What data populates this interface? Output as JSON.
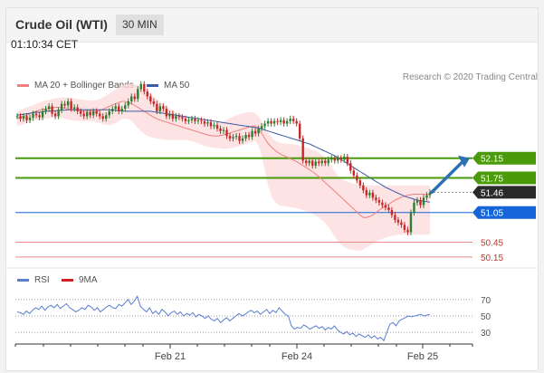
{
  "header": {
    "title": "Crude Oil (WTI)",
    "timeframe": "30 MIN"
  },
  "timestamp": "01:10:34 CET",
  "legend": {
    "ma20_bb": "MA 20 + Bollinger Bands",
    "ma50": "MA 50",
    "credit": "Research © 2020 Trading Central"
  },
  "rsi_legend": {
    "rsi": "RSI",
    "ma9": "9MA"
  },
  "colors": {
    "ma20": "#f08080",
    "ma50": "#3b5ba5",
    "band": "#fcd9d9",
    "resistance": "#4a9a0a",
    "pivot": "#1565d8",
    "support": "#e88a8a",
    "current": "#2a2a2a",
    "up_candle": "#2e7d32",
    "down_candle": "#c62828",
    "arrow": "#2f6fb4",
    "rsi": "#5a7fd0"
  },
  "chart_data": [
    {
      "type": "candlestick",
      "title": "Crude Oil (WTI)",
      "timeframe": "30 MIN",
      "x_tick_labels": [
        "Feb 21",
        "Feb 24",
        "Feb 25"
      ],
      "ylim": [
        50.0,
        53.3
      ],
      "levels": [
        {
          "value": 52.15,
          "label": "52.15",
          "kind": "resistance"
        },
        {
          "value": 51.75,
          "label": "51.75",
          "kind": "resistance"
        },
        {
          "value": 51.46,
          "label": "51.46",
          "kind": "current"
        },
        {
          "value": 51.05,
          "label": "51.05",
          "kind": "pivot"
        },
        {
          "value": 50.45,
          "label": "50.45",
          "kind": "support"
        },
        {
          "value": 50.15,
          "label": "50.15",
          "kind": "support"
        }
      ],
      "close": [
        53.0,
        52.95,
        53.0,
        52.92,
        52.97,
        53.05,
        53.02,
        52.98,
        53.1,
        53.15,
        53.2,
        53.05,
        53.0,
        53.12,
        53.25,
        53.22,
        53.3,
        53.15,
        53.18,
        53.1,
        53.05,
        53.0,
        53.08,
        53.02,
        53.1,
        53.05,
        53.0,
        52.95,
        53.02,
        53.1,
        53.15,
        53.2,
        53.1,
        53.15,
        53.22,
        53.3,
        53.4,
        53.35,
        53.55,
        53.65,
        53.5,
        53.4,
        53.3,
        53.25,
        53.1,
        53.2,
        53.15,
        53.0,
        53.05,
        52.95,
        53.0,
        52.98,
        52.95,
        52.9,
        52.92,
        52.95,
        52.9,
        52.92,
        52.9,
        52.85,
        52.88,
        52.8,
        52.82,
        52.75,
        52.7,
        52.72,
        52.6,
        52.55,
        52.58,
        52.6,
        52.5,
        52.55,
        52.62,
        52.58,
        52.7,
        52.65,
        52.75,
        52.8,
        52.85,
        52.9,
        52.85,
        52.9,
        52.88,
        52.92,
        52.85,
        52.9,
        52.95,
        52.9,
        52.85,
        52.55,
        52.1,
        52.05,
        52.1,
        52.0,
        52.08,
        52.05,
        52.1,
        52.05,
        52.12,
        52.15,
        52.1,
        52.15,
        52.12,
        52.18,
        52.05,
        51.9,
        51.8,
        51.7,
        51.6,
        51.5,
        51.4,
        51.45,
        51.35,
        51.3,
        51.25,
        51.2,
        51.15,
        51.1,
        51.0,
        50.9,
        50.85,
        50.8,
        50.7,
        50.65,
        51.05,
        51.25,
        51.3,
        51.2,
        51.35,
        51.4,
        51.46
      ],
      "ma20": [
        52.95,
        52.98,
        53.0,
        53.02,
        53.05,
        53.08,
        53.1,
        53.12,
        53.14,
        53.15,
        53.16,
        53.17,
        53.18,
        53.18,
        53.17,
        53.16,
        53.15,
        53.14,
        53.13,
        53.12,
        53.11,
        53.1,
        53.1,
        53.1,
        53.1,
        53.1,
        53.12,
        53.14,
        53.17,
        53.2,
        53.23,
        53.25,
        53.28,
        53.3,
        53.3,
        53.28,
        53.25,
        53.22,
        53.18,
        53.14,
        53.1,
        53.06,
        53.02,
        52.98,
        52.95,
        52.92,
        52.9,
        52.88,
        52.86,
        52.84,
        52.82,
        52.8,
        52.78,
        52.76,
        52.74,
        52.72,
        52.7,
        52.68,
        52.66,
        52.64,
        52.62,
        52.61,
        52.6,
        52.6,
        52.61,
        52.62,
        52.64,
        52.66,
        52.68,
        52.7,
        52.72,
        52.74,
        52.76,
        52.78,
        52.8,
        52.8,
        52.75,
        52.65,
        52.55,
        52.45,
        52.38,
        52.32,
        52.27,
        52.23,
        52.2,
        52.17,
        52.14,
        52.11,
        52.08,
        52.04,
        52.0,
        51.96,
        51.92,
        51.88,
        51.83,
        51.78,
        51.72,
        51.66,
        51.6,
        51.54,
        51.48,
        51.42,
        51.36,
        51.3,
        51.24,
        51.18,
        51.12,
        51.06,
        51.0,
        50.95,
        50.95,
        50.97,
        51.0,
        51.05,
        51.1,
        51.14,
        51.18,
        51.22,
        51.26,
        51.3,
        51.33,
        51.36,
        51.38,
        51.4,
        51.41,
        51.42,
        51.42,
        51.42,
        51.42,
        51.42,
        51.42
      ],
      "bb_upper": [
        53.1,
        53.12,
        53.15,
        53.18,
        53.2,
        53.22,
        53.25,
        53.28,
        53.3,
        53.32,
        53.33,
        53.35,
        53.36,
        53.37,
        53.38,
        53.38,
        53.38,
        53.37,
        53.36,
        53.35,
        53.34,
        53.33,
        53.32,
        53.32,
        53.32,
        53.33,
        53.35,
        53.38,
        53.42,
        53.46,
        53.5,
        53.54,
        53.58,
        53.62,
        53.65,
        53.66,
        53.66,
        53.65,
        53.62,
        53.58,
        53.54,
        53.5,
        53.45,
        53.4,
        53.35,
        53.3,
        53.25,
        53.2,
        53.16,
        53.12,
        53.08,
        53.05,
        53.02,
        52.99,
        52.96,
        52.94,
        52.92,
        52.9,
        52.88,
        52.86,
        52.85,
        52.84,
        52.84,
        52.85,
        52.87,
        52.9,
        52.93,
        52.96,
        52.99,
        53.02,
        53.04,
        53.06,
        53.07,
        53.08,
        53.08,
        53.06,
        53.0,
        52.9,
        52.78,
        52.66,
        52.58,
        52.52,
        52.48,
        52.46,
        52.45,
        52.44,
        52.44,
        52.43,
        52.42,
        52.4,
        52.38,
        52.36,
        52.34,
        52.32,
        52.3,
        52.27,
        52.22,
        52.16,
        52.08,
        51.98,
        51.88,
        51.8,
        51.74,
        51.7,
        51.67,
        51.65,
        51.63,
        51.62,
        51.61,
        51.6,
        51.6,
        51.6,
        51.6,
        51.6,
        51.6,
        51.6,
        51.6,
        51.6,
        51.6,
        51.6,
        51.6,
        51.6,
        51.6,
        51.6,
        51.6,
        51.6,
        51.6,
        51.6,
        51.6,
        51.6,
        51.6
      ],
      "bb_lower": [
        52.8,
        52.82,
        52.84,
        52.86,
        52.88,
        52.9,
        52.92,
        52.93,
        52.94,
        52.95,
        52.96,
        52.97,
        52.98,
        52.98,
        52.97,
        52.95,
        52.93,
        52.92,
        52.91,
        52.9,
        52.9,
        52.9,
        52.9,
        52.9,
        52.9,
        52.88,
        52.86,
        52.84,
        52.82,
        52.82,
        52.84,
        52.86,
        52.9,
        52.94,
        52.95,
        52.94,
        52.9,
        52.84,
        52.76,
        52.7,
        52.64,
        52.6,
        52.58,
        52.56,
        52.55,
        52.54,
        52.53,
        52.52,
        52.52,
        52.52,
        52.52,
        52.52,
        52.52,
        52.52,
        52.51,
        52.5,
        52.48,
        52.45,
        52.42,
        52.4,
        52.38,
        52.37,
        52.36,
        52.35,
        52.35,
        52.34,
        52.34,
        52.35,
        52.36,
        52.38,
        52.4,
        52.42,
        52.44,
        52.46,
        52.48,
        52.5,
        52.4,
        52.2,
        51.9,
        51.6,
        51.4,
        51.28,
        51.22,
        51.19,
        51.18,
        51.17,
        51.16,
        51.15,
        51.14,
        51.12,
        51.1,
        51.08,
        51.05,
        51.02,
        50.99,
        50.95,
        50.9,
        50.84,
        50.76,
        50.66,
        50.56,
        50.47,
        50.4,
        50.35,
        50.32,
        50.3,
        50.29,
        50.28,
        50.28,
        50.3,
        50.34,
        50.38,
        50.42,
        50.46,
        50.49,
        50.52,
        50.54,
        50.56,
        50.58,
        50.59,
        50.6,
        50.6,
        50.6,
        50.6,
        50.6,
        50.6,
        50.6,
        50.6,
        50.6,
        50.6,
        50.6
      ],
      "ma50": [
        53.02,
        53.03,
        53.04,
        53.05,
        53.06,
        53.07,
        53.08,
        53.08,
        53.09,
        53.1,
        53.1,
        53.11,
        53.11,
        53.12,
        53.12,
        53.12,
        53.13,
        53.13,
        53.13,
        53.13,
        53.13,
        53.13,
        53.13,
        53.13,
        53.13,
        53.13,
        53.13,
        53.13,
        53.13,
        53.13,
        53.12,
        53.12,
        53.11,
        53.11,
        53.1,
        53.1,
        53.1,
        53.1,
        53.1,
        53.1,
        53.1,
        53.1,
        53.1,
        53.09,
        53.08,
        53.07,
        53.06,
        53.05,
        53.04,
        53.03,
        53.02,
        53.01,
        53.0,
        52.99,
        52.98,
        52.97,
        52.96,
        52.95,
        52.94,
        52.93,
        52.92,
        52.91,
        52.9,
        52.89,
        52.88,
        52.87,
        52.86,
        52.85,
        52.84,
        52.83,
        52.82,
        52.81,
        52.8,
        52.79,
        52.78,
        52.77,
        52.76,
        52.74,
        52.72,
        52.7,
        52.68,
        52.66,
        52.64,
        52.62,
        52.6,
        52.58,
        52.56,
        52.54,
        52.52,
        52.5,
        52.48,
        52.46,
        52.44,
        52.41,
        52.38,
        52.35,
        52.32,
        52.29,
        52.26,
        52.23,
        52.2,
        52.16,
        52.12,
        52.08,
        52.04,
        52.0,
        51.96,
        51.92,
        51.88,
        51.84,
        51.8,
        51.76,
        51.72,
        51.68,
        51.64,
        51.6,
        51.56,
        51.53,
        51.5,
        51.47,
        51.44,
        51.41,
        51.38,
        51.36,
        51.34,
        51.32,
        51.3,
        51.29,
        51.28,
        51.27,
        51.26
      ],
      "forecast_arrow": {
        "from": 51.46,
        "to": 52.15
      }
    },
    {
      "type": "line",
      "title": "RSI",
      "series": [
        {
          "name": "RSI",
          "values": [
            55,
            54,
            52,
            56,
            53,
            57,
            60,
            58,
            62,
            57,
            61,
            63,
            60,
            64,
            59,
            62,
            65,
            60,
            58,
            55,
            57,
            60,
            58,
            63,
            61,
            57,
            60,
            55,
            58,
            61,
            63,
            60,
            59,
            64,
            62,
            66,
            70,
            64,
            68,
            74,
            62,
            58,
            55,
            60,
            53,
            56,
            52,
            58,
            55,
            50,
            54,
            56,
            52,
            55,
            50,
            53,
            51,
            54,
            49,
            52,
            50,
            47,
            50,
            46,
            44,
            47,
            42,
            45,
            48,
            44,
            47,
            50,
            53,
            50,
            52,
            55,
            57,
            54,
            56,
            52,
            55,
            58,
            53,
            57,
            54,
            60,
            56,
            52,
            50,
            38,
            34,
            36,
            35,
            39,
            37,
            34,
            36,
            38,
            35,
            37,
            33,
            36,
            34,
            38,
            33,
            30,
            28,
            31,
            27,
            29,
            25,
            28,
            26,
            24,
            27,
            23,
            26,
            22,
            24,
            20,
            30,
            40,
            42,
            38,
            44,
            46,
            48,
            50,
            49,
            50,
            51,
            52,
            50,
            51,
            52
          ]
        },
        {
          "name": "9MA",
          "values": []
        }
      ],
      "y_ticks": [
        70,
        50,
        30
      ],
      "ylim": [
        18,
        82
      ]
    }
  ]
}
